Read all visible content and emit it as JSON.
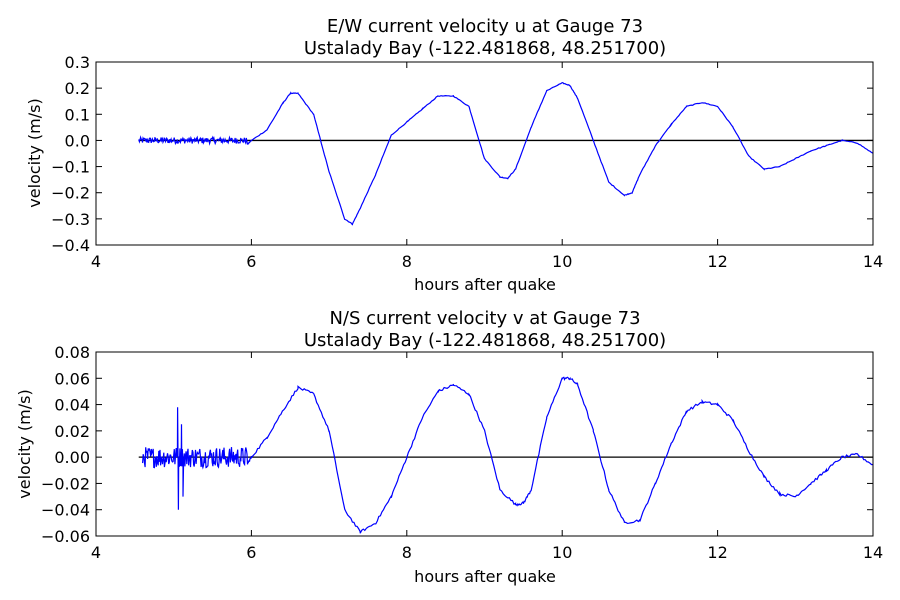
{
  "chart_data": [
    {
      "type": "line",
      "title_line1": "E/W current velocity u at Gauge 73",
      "title_line2": "Ustalady Bay  (-122.481868, 48.251700)",
      "xlabel": "hours after quake",
      "ylabel": "velocity (m/s)",
      "xlim": [
        4,
        14
      ],
      "ylim": [
        -0.4,
        0.3
      ],
      "xticks": [
        "4",
        "6",
        "8",
        "10",
        "12",
        "14"
      ],
      "yticks": [
        "−0.4",
        "−0.3",
        "−0.2",
        "−0.1",
        "0.0",
        "0.1",
        "0.2",
        "0.3"
      ],
      "grid": false,
      "legend": "none",
      "zero_line_color": "#000000",
      "series_color": "#0000ff",
      "noise_start": 4.55,
      "noise_end": 5.95,
      "noise_amplitude": 0.012,
      "series": [
        {
          "x": [
            4.55,
            5.95,
            6.0,
            6.2,
            6.4,
            6.5,
            6.6,
            6.8,
            7.0,
            7.2,
            7.3,
            7.4,
            7.6,
            7.8,
            8.0,
            8.2,
            8.4,
            8.6,
            8.8,
            9.0,
            9.2,
            9.3,
            9.4,
            9.6,
            9.8,
            10.0,
            10.1,
            10.2,
            10.4,
            10.6,
            10.8,
            10.9,
            11.0,
            11.2,
            11.4,
            11.6,
            11.8,
            12.0,
            12.2,
            12.4,
            12.6,
            12.8,
            13.0,
            13.2,
            13.4,
            13.6,
            13.8,
            14.0
          ],
          "y": [
            0.0,
            -0.015,
            0.0,
            0.04,
            0.14,
            0.18,
            0.18,
            0.1,
            -0.12,
            -0.3,
            -0.32,
            -0.26,
            -0.13,
            0.02,
            0.07,
            0.12,
            0.17,
            0.17,
            0.13,
            -0.07,
            -0.14,
            -0.145,
            -0.11,
            0.05,
            0.19,
            0.22,
            0.21,
            0.16,
            0.0,
            -0.16,
            -0.21,
            -0.2,
            -0.13,
            -0.02,
            0.06,
            0.13,
            0.145,
            0.13,
            0.05,
            -0.06,
            -0.11,
            -0.1,
            -0.07,
            -0.04,
            -0.02,
            0.0,
            -0.01,
            -0.05
          ]
        }
      ]
    },
    {
      "type": "line",
      "title_line1": "N/S current velocity v at Gauge 73",
      "title_line2": "Ustalady Bay  (-122.481868, 48.251700)",
      "xlabel": "hours after quake",
      "ylabel": "velocity (m/s)",
      "xlim": [
        4,
        14
      ],
      "ylim": [
        -0.06,
        0.08
      ],
      "xticks": [
        "4",
        "6",
        "8",
        "10",
        "12",
        "14"
      ],
      "yticks": [
        "−0.06",
        "−0.04",
        "−0.02",
        "0.00",
        "0.02",
        "0.04",
        "0.06",
        "0.08"
      ],
      "grid": false,
      "legend": "none",
      "zero_line_color": "#000000",
      "series_color": "#0000ff",
      "noise_start": 4.6,
      "noise_end": 5.95,
      "noise_amplitude": 0.008,
      "spikes": [
        {
          "x": 5.05,
          "y": 0.038
        },
        {
          "x": 5.06,
          "y": -0.04
        },
        {
          "x": 5.1,
          "y": 0.025
        },
        {
          "x": 5.12,
          "y": -0.03
        }
      ],
      "series": [
        {
          "x": [
            4.6,
            5.95,
            6.0,
            6.2,
            6.4,
            6.6,
            6.8,
            7.0,
            7.2,
            7.4,
            7.6,
            7.8,
            8.0,
            8.2,
            8.4,
            8.6,
            8.8,
            9.0,
            9.2,
            9.4,
            9.5,
            9.6,
            9.8,
            10.0,
            10.1,
            10.2,
            10.4,
            10.6,
            10.8,
            11.0,
            11.2,
            11.4,
            11.6,
            11.8,
            12.0,
            12.2,
            12.4,
            12.6,
            12.8,
            13.0,
            13.2,
            13.4,
            13.6,
            13.8,
            14.0
          ],
          "y": [
            0.0,
            -0.005,
            0.0,
            0.015,
            0.035,
            0.053,
            0.048,
            0.02,
            -0.04,
            -0.057,
            -0.05,
            -0.03,
            0.0,
            0.03,
            0.05,
            0.055,
            0.048,
            0.02,
            -0.025,
            -0.036,
            -0.035,
            -0.025,
            0.03,
            0.06,
            0.06,
            0.055,
            0.02,
            -0.025,
            -0.05,
            -0.048,
            -0.02,
            0.01,
            0.035,
            0.042,
            0.04,
            0.028,
            0.005,
            -0.015,
            -0.028,
            -0.03,
            -0.02,
            -0.01,
            0.0,
            0.002,
            -0.006
          ]
        }
      ]
    }
  ]
}
